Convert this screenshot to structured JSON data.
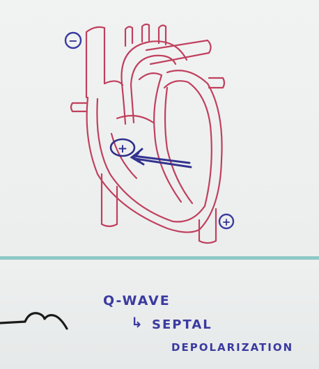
{
  "whiteboard": {
    "negative_electrode_sign": "−",
    "septum_charge_sign": "+",
    "positive_electrode_sign": "+",
    "note_line_1": "Q-WAVE",
    "note_line_2": "SEPTAL",
    "note_line_3": "DEPOLARIZATION",
    "note_arrow_glyph": "↳"
  },
  "colors": {
    "heart_outline": "#c0405d",
    "marker_blue": "#3a3aa0",
    "divider": "#8ec9c6",
    "ecg_trace": "#1a1a1a"
  }
}
